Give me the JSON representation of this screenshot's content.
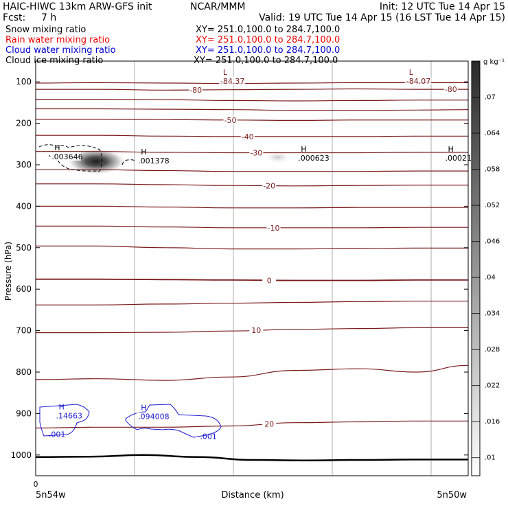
{
  "header": {
    "model_title": "HAIC-HIWC 13km ARW-GFS init",
    "org": "NCAR/MMM",
    "init": "Init: 12 UTC Tue 14 Apr 15",
    "fcst_label": "Fcst:",
    "fcst_value": "7 h",
    "valid": "Valid: 19 UTC Tue 14 Apr 15 (16 LST Tue 14 Apr 15)"
  },
  "fields": [
    {
      "name": "Snow mixing ratio",
      "xy": "XY= 251.0,100.0 to 284.7,100.0",
      "color": "#000000"
    },
    {
      "name": "Rain water mixing ratio",
      "xy": "XY= 251.0,100.0 to 284.7,100.0",
      "color": "#ee0000"
    },
    {
      "name": "Cloud water mixing ratio",
      "xy": "XY= 251.0,100.0 to 284.7,100.0",
      "color": "#0000cc"
    },
    {
      "name": "Cloud ice mixing ratio",
      "xy": "XY= 251.0,100.0 to 284.7,100.0",
      "color": "#000000"
    }
  ],
  "colors": {
    "isotherm": "#7a1a1a",
    "cloud_water": "#1a1ad0",
    "ground": "#000000"
  },
  "chart_data": {
    "type": "heatmap",
    "xlabel": "Distance (km)",
    "ylabel": "Pressure (hPa)",
    "x_tick_labels": [
      "0"
    ],
    "x_end_labels": {
      "left": "5n54w",
      "right": "5n50w"
    },
    "y_ticks": [
      100,
      200,
      300,
      400,
      500,
      600,
      700,
      800,
      900,
      1000
    ],
    "ylim": [
      1050,
      50
    ],
    "colorbar": {
      "unit": "g kg⁻¹",
      "ticks": [
        ".01",
        ".016",
        ".022",
        ".028",
        ".034",
        ".04",
        ".046",
        ".052",
        ".058",
        ".064",
        ".07"
      ],
      "min": 0.007,
      "max": 0.076
    },
    "isotherms": [
      {
        "p": [
          118,
          118,
          120,
          119,
          118,
          117,
          118,
          118
        ],
        "label": "-80"
      },
      {
        "p": [
          103,
          102,
          103,
          104,
          103,
          102,
          102,
          102
        ]
      },
      {
        "p": [
          142,
          142,
          143,
          145,
          146,
          145,
          144,
          144
        ]
      },
      {
        "p": [
          165,
          165,
          166,
          167,
          169,
          169,
          168,
          167
        ]
      },
      {
        "p": [
          190,
          190,
          191,
          192,
          193,
          192,
          192,
          192
        ],
        "label": "-50"
      },
      {
        "p": [
          229,
          229,
          231,
          232,
          232,
          232,
          231,
          231
        ],
        "label": "-40"
      },
      {
        "p": [
          268,
          268,
          270,
          271,
          271,
          271,
          270,
          270
        ],
        "label": "-30"
      },
      {
        "p": [
          312,
          312,
          314,
          316,
          316,
          316,
          315,
          315
        ]
      },
      {
        "p": [
          346,
          346,
          348,
          350,
          351,
          350,
          349,
          349
        ],
        "label": "-20"
      },
      {
        "p": [
          400,
          400,
          402,
          404,
          404,
          403,
          403,
          403
        ]
      },
      {
        "p": [
          448,
          448,
          450,
          452,
          452,
          452,
          451,
          451
        ],
        "label": "-10"
      },
      {
        "p": [
          496,
          496,
          500,
          503,
          503,
          502,
          501,
          501
        ]
      },
      {
        "p": [
          576,
          576,
          577,
          578,
          579,
          579,
          578,
          578
        ],
        "label": "0"
      },
      {
        "p": [
          638,
          638,
          636,
          634,
          632,
          630,
          629,
          629
        ]
      },
      {
        "p": [
          705,
          705,
          704,
          701,
          697,
          695,
          693,
          693
        ],
        "label": "10"
      },
      {
        "p": [
          818,
          816,
          820,
          812,
          796,
          792,
          800,
          784
        ]
      },
      {
        "p": [
          935,
          933,
          933,
          930,
          922,
          920,
          918,
          918
        ],
        "label": "20"
      }
    ],
    "isotherm_x": [
      0,
      0.14,
      0.3,
      0.45,
      0.6,
      0.75,
      0.88,
      1.0
    ],
    "minima": [
      {
        "x": 0.43,
        "p": 103,
        "marker": "L",
        "value": "-84.37"
      },
      {
        "x": 0.86,
        "p": 103,
        "marker": "L",
        "value": "-84.07"
      }
    ],
    "ice_maxima": [
      {
        "x": 0.04,
        "p": 285,
        "marker": "H",
        "value": ".003646"
      },
      {
        "x": 0.24,
        "p": 295,
        "marker": "H",
        "value": ".001378"
      },
      {
        "x": 0.61,
        "p": 288,
        "marker": "H",
        "value": ".000623"
      },
      {
        "x": 0.95,
        "p": 288,
        "marker": "H",
        "value": ".00021"
      }
    ],
    "cloud_water_maxima": [
      {
        "x": 0.05,
        "p": 910,
        "marker": "H",
        "value": ".14663"
      },
      {
        "x": 0.24,
        "p": 912,
        "marker": "H",
        "value": ".094008"
      }
    ],
    "cloud_water_contour_labels": [
      {
        "x": 0.03,
        "p": 950,
        "value": ".001"
      },
      {
        "x": 0.38,
        "p": 955,
        "value": ".001"
      }
    ],
    "snow_blobs": [
      {
        "x": 0.14,
        "p": 292,
        "rx": 0.07,
        "rp": 33,
        "value": 0.072
      },
      {
        "x": 0.56,
        "p": 282,
        "rx": 0.035,
        "rp": 16,
        "value": 0.02
      }
    ],
    "ground_pressure": [
      1005,
      1004,
      1000,
      1005,
      1012,
      1013,
      1012,
      1011,
      1011
    ]
  }
}
